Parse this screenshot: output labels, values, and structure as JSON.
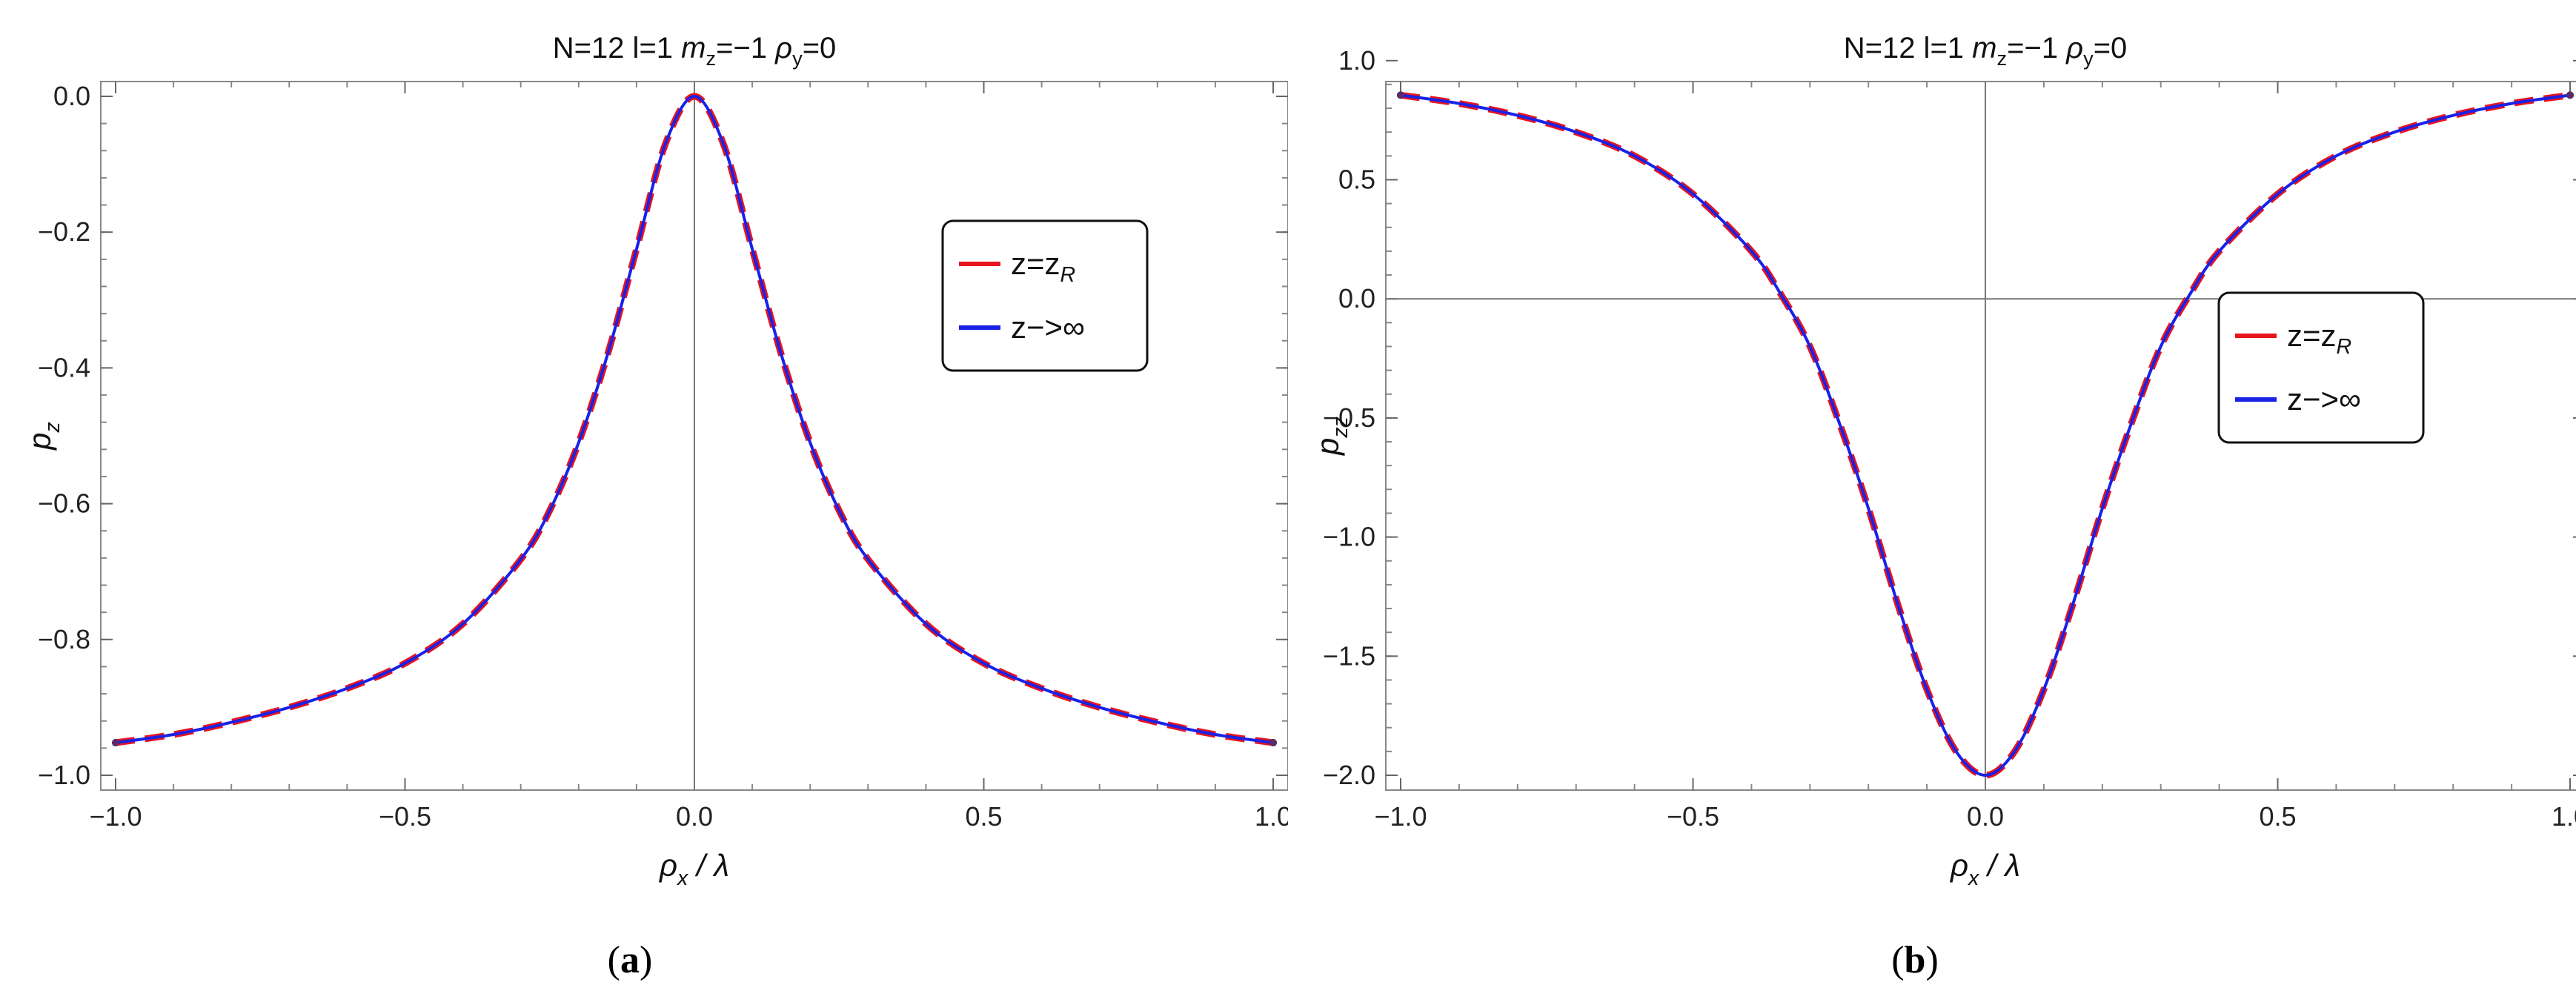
{
  "captions": [
    "(a)",
    "(b)"
  ],
  "chart_data": [
    {
      "type": "line",
      "title": "N=12 l=1 m_z=−1 ρ_y=0",
      "title_parts": [
        "N=12 l=1 ",
        "m",
        "z",
        "=−1 ",
        "ρ",
        "y",
        "=0"
      ],
      "xlabel_parts": [
        "ρ",
        "x",
        "/ λ"
      ],
      "ylabel_parts": [
        "p",
        "z"
      ],
      "xlim": [
        -1.0,
        1.0
      ],
      "ylim": [
        -1.0,
        0.0
      ],
      "xticks": [
        -1.0,
        -0.5,
        0.0,
        0.5,
        1.0
      ],
      "xtick_labels": [
        "−1.0",
        "−0.5",
        "0.0",
        "0.5",
        "1.0"
      ],
      "yticks": [
        0.0,
        -0.2,
        -0.4,
        -0.6,
        -0.8,
        -1.0
      ],
      "ytick_labels": [
        "0.0",
        "−0.2",
        "−0.4",
        "−0.6",
        "−0.8",
        "−1.0"
      ],
      "legend_position": "top-right",
      "series": [
        {
          "name": "z=z_R",
          "name_parts": [
            "z=z",
            "R"
          ],
          "color": "#e8141e",
          "style": "dashed",
          "x": [
            -1.0,
            -0.9,
            -0.8,
            -0.7,
            -0.6,
            -0.5,
            -0.4,
            -0.3,
            -0.25,
            -0.2,
            -0.15,
            -0.1,
            -0.05,
            0.0,
            0.05,
            0.1,
            0.15,
            0.2,
            0.25,
            0.3,
            0.4,
            0.5,
            0.6,
            0.7,
            0.8,
            0.9,
            1.0
          ],
          "y": [
            -0.952,
            -0.94,
            -0.922,
            -0.9,
            -0.872,
            -0.835,
            -0.777,
            -0.682,
            -0.61,
            -0.51,
            -0.38,
            -0.225,
            -0.07,
            0.0,
            -0.07,
            -0.225,
            -0.38,
            -0.51,
            -0.61,
            -0.682,
            -0.777,
            -0.835,
            -0.872,
            -0.9,
            -0.922,
            -0.94,
            -0.952
          ]
        },
        {
          "name": "z−>∞",
          "name_parts": [
            "z−>∞"
          ],
          "color": "#1a22e6",
          "style": "solid",
          "x": [
            -1.0,
            -0.9,
            -0.8,
            -0.7,
            -0.6,
            -0.5,
            -0.4,
            -0.3,
            -0.25,
            -0.2,
            -0.15,
            -0.1,
            -0.05,
            0.0,
            0.05,
            0.1,
            0.15,
            0.2,
            0.25,
            0.3,
            0.4,
            0.5,
            0.6,
            0.7,
            0.8,
            0.9,
            1.0
          ],
          "y": [
            -0.952,
            -0.94,
            -0.922,
            -0.9,
            -0.872,
            -0.835,
            -0.777,
            -0.682,
            -0.61,
            -0.51,
            -0.38,
            -0.225,
            -0.07,
            0.0,
            -0.07,
            -0.225,
            -0.38,
            -0.51,
            -0.61,
            -0.682,
            -0.777,
            -0.835,
            -0.872,
            -0.9,
            -0.922,
            -0.94,
            -0.952
          ]
        }
      ]
    },
    {
      "type": "line",
      "title": "N=12 l=1 m_z=−1 ρ_y=0",
      "title_parts": [
        "N=12 l=1 ",
        "m",
        "z",
        "=−1 ",
        "ρ",
        "y",
        "=0"
      ],
      "xlabel_parts": [
        "ρ",
        "x",
        "/ λ"
      ],
      "ylabel_parts": [
        "p",
        "zz"
      ],
      "xlim": [
        -1.0,
        1.0
      ],
      "ylim": [
        -2.0,
        0.85
      ],
      "xticks": [
        -1.0,
        -0.5,
        0.0,
        0.5,
        1.0
      ],
      "xtick_labels": [
        "−1.0",
        "−0.5",
        "0.0",
        "0.5",
        "1.0"
      ],
      "yticks": [
        1.0,
        0.5,
        0.0,
        -0.5,
        -1.0,
        -1.5,
        -2.0
      ],
      "ytick_labels": [
        "1.0",
        "0.5",
        "0.0",
        "−0.5",
        "−1.0",
        "−1.5",
        "−2.0"
      ],
      "legend_position": "center-right",
      "series": [
        {
          "name": "z=z_R",
          "name_parts": [
            "z=z",
            "R"
          ],
          "color": "#e8141e",
          "style": "dashed",
          "x": [
            -1.0,
            -0.9,
            -0.8,
            -0.7,
            -0.6,
            -0.5,
            -0.4,
            -0.35,
            -0.3,
            -0.25,
            -0.2,
            -0.15,
            -0.1,
            -0.05,
            0.0,
            0.05,
            0.1,
            0.15,
            0.2,
            0.25,
            0.3,
            0.35,
            0.4,
            0.5,
            0.6,
            0.7,
            0.8,
            0.9,
            1.0
          ],
          "y": [
            0.855,
            0.82,
            0.77,
            0.7,
            0.6,
            0.44,
            0.2,
            0.02,
            -0.2,
            -0.52,
            -0.88,
            -1.28,
            -1.64,
            -1.9,
            -2.0,
            -1.9,
            -1.64,
            -1.28,
            -0.88,
            -0.52,
            -0.2,
            0.02,
            0.2,
            0.44,
            0.6,
            0.7,
            0.77,
            0.82,
            0.855
          ]
        },
        {
          "name": "z−>∞",
          "name_parts": [
            "z−>∞"
          ],
          "color": "#1a22e6",
          "style": "solid",
          "x": [
            -1.0,
            -0.9,
            -0.8,
            -0.7,
            -0.6,
            -0.5,
            -0.4,
            -0.35,
            -0.3,
            -0.25,
            -0.2,
            -0.15,
            -0.1,
            -0.05,
            0.0,
            0.05,
            0.1,
            0.15,
            0.2,
            0.25,
            0.3,
            0.35,
            0.4,
            0.5,
            0.6,
            0.7,
            0.8,
            0.9,
            1.0
          ],
          "y": [
            0.855,
            0.82,
            0.77,
            0.7,
            0.6,
            0.44,
            0.2,
            0.02,
            -0.2,
            -0.52,
            -0.88,
            -1.28,
            -1.64,
            -1.9,
            -2.0,
            -1.9,
            -1.64,
            -1.28,
            -0.88,
            -0.52,
            -0.2,
            0.02,
            0.2,
            0.44,
            0.6,
            0.7,
            0.77,
            0.82,
            0.855
          ]
        }
      ]
    }
  ]
}
